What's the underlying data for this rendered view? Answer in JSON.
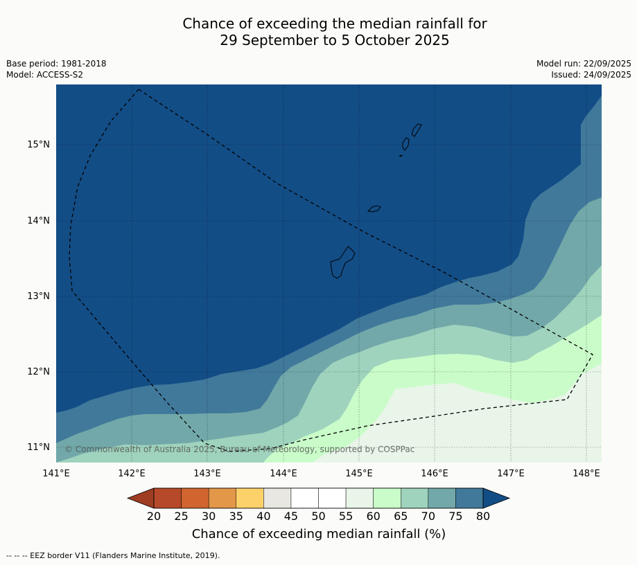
{
  "title_line1": "Chance of exceeding the median rainfall for",
  "title_line2": "29 September to 5 October 2025",
  "base_period": "Base period: 1981-2018",
  "model": "Model: ACCESS-S2",
  "model_run": "Model run: 22/09/2025",
  "issued": "Issued: 24/09/2025",
  "copyright": "© Commonwealth of Australia 2025, Bureau of Meteorology, supported by COSPPac",
  "lon_labels": [
    "141°E",
    "142°E",
    "143°E",
    "144°E",
    "145°E",
    "146°E",
    "147°E",
    "148°E"
  ],
  "lat_labels": [
    "15°N",
    "14°N",
    "13°N",
    "12°N",
    "11°N"
  ],
  "colorbar": {
    "ticks": [
      "20",
      "25",
      "30",
      "35",
      "40",
      "45",
      "50",
      "55",
      "60",
      "65",
      "70",
      "75",
      "80"
    ],
    "colors": [
      "#9e3d22",
      "#b6492a",
      "#d0652f",
      "#e39748",
      "#fdd16a",
      "#e9e7e2",
      "#ffffff",
      "#ffffff",
      "#e8f5e8",
      "#c9fcc9",
      "#9fd3bd",
      "#72a8a9",
      "#41799b",
      "#134d86"
    ],
    "title": "Chance of exceeding median rainfall (%)"
  },
  "footnote": "-- -- -- EEZ border V11 (Flanders Marine Institute, 2019).",
  "colors": {
    "band_80plus": "#134d86",
    "band_75_80": "#41799b",
    "band_70_75": "#72a8a9",
    "band_65_70": "#9fd3bd",
    "band_60_65": "#c9fcc9",
    "band_55_60": "#e8f5e8",
    "background": "#fbfcf9"
  }
}
